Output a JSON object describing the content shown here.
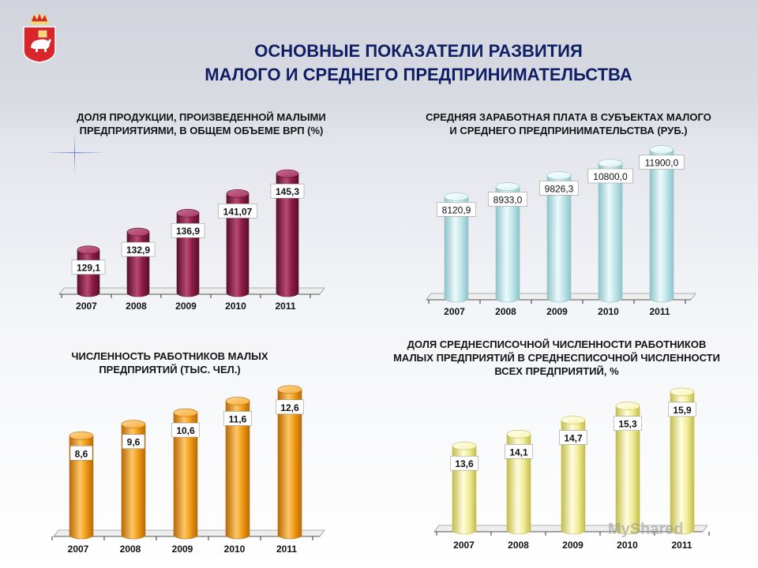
{
  "title_lines": [
    "ОСНОВНЫЕ ПОКАЗАТЕЛИ РАЗВИТИЯ",
    "МАЛОГО И СРЕДНЕГО ПРЕДПРИНИМАТЕЛЬСТВА"
  ],
  "watermark": "MyShared",
  "colors": {
    "title": "#0f1f66",
    "maroon": "#8a1c44",
    "cyan": "#bfe6ea",
    "orange": "#ef9a14",
    "yellow": "#f2ee9a"
  },
  "chart_data": [
    {
      "type": "bar",
      "title_lines": [
        "ДОЛЯ ПРОДУКЦИИ, ПРОИЗВЕДЕННОЙ МАЛЫМИ",
        "ПРЕДПРИЯТИЯМИ, В ОБЩЕМ ОБЪЕМЕ ВРП (%)"
      ],
      "categories": [
        "2007",
        "2008",
        "2009",
        "2010",
        "2011"
      ],
      "values": [
        129.1,
        132.9,
        136.9,
        141.07,
        145.3
      ],
      "labels": [
        "129,1",
        "132,9",
        "136,9",
        "141,07",
        "145,3"
      ],
      "ylim": [
        120,
        147
      ],
      "color": "maroon"
    },
    {
      "type": "bar",
      "title_lines": [
        "СРЕДНЯЯ ЗАРАБОТНАЯ ПЛАТА В СУБЪЕКТАХ МАЛОГО",
        "И СРЕДНЕГО ПРЕДПРИНИМАТЕЛЬСТВА (РУБ.)"
      ],
      "categories": [
        "2007",
        "2008",
        "2009",
        "2010",
        "2011"
      ],
      "values": [
        8120.9,
        8933.0,
        9826.3,
        10800.0,
        11900.0
      ],
      "labels": [
        "8120,9",
        "8933,0",
        "9826,3",
        "10800,0",
        "11900,0"
      ],
      "ylim": [
        0,
        12000
      ],
      "color": "cyan"
    },
    {
      "type": "bar",
      "title_lines": [
        "ЧИСЛЕННОСТЬ РАБОТНИКОВ МАЛЫХ",
        "ПРЕДПРИЯТИЙ (ТЫС. ЧЕЛ.)"
      ],
      "categories": [
        "2007",
        "2008",
        "2009",
        "2010",
        "2011"
      ],
      "values": [
        8.6,
        9.6,
        10.6,
        11.6,
        12.6
      ],
      "labels": [
        "8,6",
        "9,6",
        "10,6",
        "11,6",
        "12,6"
      ],
      "ylim": [
        0,
        13
      ],
      "color": "orange"
    },
    {
      "type": "bar",
      "title_lines": [
        "ДОЛЯ СРЕДНЕСПИСОЧНОЙ ЧИСЛЕННОСТИ РАБОТНИКОВ",
        "МАЛЫХ ПРЕДПРИЯТИЙ В СРЕДНЕСПИСОЧНОЙ ЧИСЛЕННОСТИ",
        "ВСЕХ ПРЕДПРИЯТИЙ, %"
      ],
      "categories": [
        "2007",
        "2008",
        "2009",
        "2010",
        "2011"
      ],
      "values": [
        13.6,
        14.1,
        14.7,
        15.3,
        15.9
      ],
      "labels": [
        "13,6",
        "14,1",
        "14,7",
        "15,3",
        "15,9"
      ],
      "ylim": [
        10,
        16.2
      ],
      "color": "yellow"
    }
  ]
}
